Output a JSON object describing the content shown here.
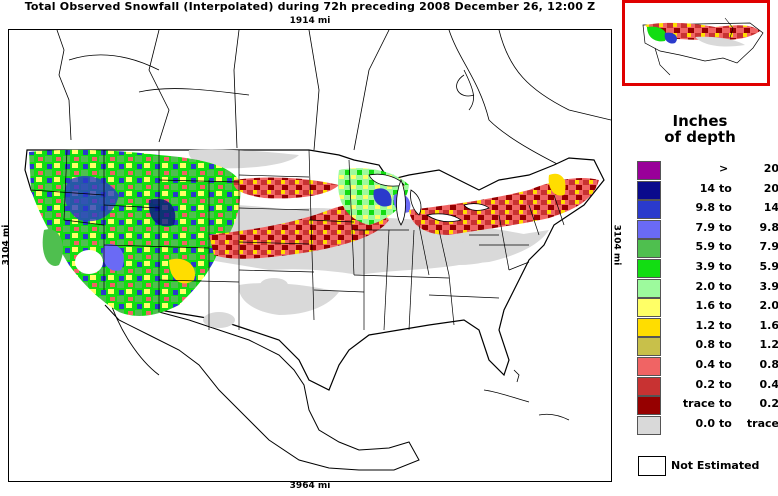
{
  "title": "Total Observed Snowfall (Interpolated) during 72h preceding 2008 December 26, 12:00 Z",
  "distances": {
    "top": "1914 mi",
    "bottom": "3964 mi",
    "left": "3104 mi",
    "right": "3104 mi"
  },
  "legend": {
    "title_line1": "Inches",
    "title_line2": "of depth",
    "items": [
      {
        "low": "",
        "to": ">",
        "high": "20",
        "color": "#990099"
      },
      {
        "low": "14",
        "to": "to",
        "high": "20",
        "color": "#0a0a8c"
      },
      {
        "low": "9.8",
        "to": "to",
        "high": "14",
        "color": "#2a3acc"
      },
      {
        "low": "7.9",
        "to": "to",
        "high": "9.8",
        "color": "#6a6af5"
      },
      {
        "low": "5.9",
        "to": "to",
        "high": "7.9",
        "color": "#4fbf4f"
      },
      {
        "low": "3.9",
        "to": "to",
        "high": "5.9",
        "color": "#12dd12"
      },
      {
        "low": "2.0",
        "to": "to",
        "high": "3.9",
        "color": "#9dfa9d"
      },
      {
        "low": "1.6",
        "to": "to",
        "high": "2.0",
        "color": "#ffff66"
      },
      {
        "low": "1.2",
        "to": "to",
        "high": "1.6",
        "color": "#ffdd00"
      },
      {
        "low": "0.8",
        "to": "to",
        "high": "1.2",
        "color": "#c8c04a"
      },
      {
        "low": "0.4",
        "to": "to",
        "high": "0.8",
        "color": "#f06464"
      },
      {
        "low": "0.2",
        "to": "to",
        "high": "0.4",
        "color": "#c83232"
      },
      {
        "low": "trace",
        "to": "to",
        "high": "0.2",
        "color": "#960000"
      },
      {
        "low": "0.0",
        "to": "to",
        "high": "trace",
        "color": "#d9d9d9"
      }
    ],
    "not_estimated": "Not Estimated"
  }
}
